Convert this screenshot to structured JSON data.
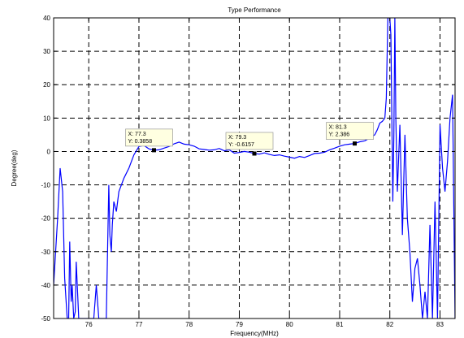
{
  "chart_data": {
    "type": "line",
    "title": "Type Performance",
    "xlabel": "Frequency(MHz)",
    "ylabel": "Degree(deg)",
    "xlim": [
      75.3,
      83.3
    ],
    "ylim": [
      -50,
      40
    ],
    "x_ticks": [
      "76",
      "77",
      "78",
      "79",
      "80",
      "81",
      "82",
      "83"
    ],
    "y_ticks": [
      "-50",
      "-40",
      "-30",
      "-20",
      "-10",
      "0",
      "10",
      "20",
      "30",
      "40"
    ],
    "grid": true,
    "series": [
      {
        "color": "#0000ff",
        "x": [
          75.3,
          75.38,
          75.43,
          75.48,
          75.52,
          75.57,
          75.6,
          75.62,
          75.65,
          75.67,
          75.7,
          75.73,
          75.75,
          75.8,
          75.85,
          75.9,
          75.95,
          76.0,
          76.05,
          76.1,
          76.15,
          76.2,
          76.25,
          76.3,
          76.35,
          76.4,
          76.42,
          76.45,
          76.47,
          76.5,
          76.55,
          76.6,
          76.7,
          76.8,
          76.9,
          77.0,
          77.1,
          77.2,
          77.3,
          77.4,
          77.5,
          77.6,
          77.7,
          77.8,
          77.9,
          78.0,
          78.1,
          78.2,
          78.3,
          78.4,
          78.5,
          78.6,
          78.7,
          78.8,
          78.9,
          79.0,
          79.1,
          79.2,
          79.3,
          79.4,
          79.5,
          79.6,
          79.7,
          79.8,
          79.9,
          80.0,
          80.1,
          80.2,
          80.3,
          80.4,
          80.5,
          80.6,
          80.7,
          80.8,
          80.9,
          81.0,
          81.1,
          81.2,
          81.3,
          81.4,
          81.5,
          81.6,
          81.7,
          81.75,
          81.8,
          81.85,
          81.9,
          81.93,
          81.96,
          82.0,
          82.02,
          82.04,
          82.06,
          82.08,
          82.1,
          82.12,
          82.15,
          82.2,
          82.25,
          82.3,
          82.35,
          82.4,
          82.45,
          82.5,
          82.55,
          82.6,
          82.65,
          82.7,
          82.75,
          82.8,
          82.85,
          82.9,
          82.95,
          83.0,
          83.05,
          83.1,
          83.15,
          83.2,
          83.25,
          83.3
        ],
        "y": [
          -40,
          -20,
          -5,
          -12,
          -38,
          -50,
          -50,
          -27,
          -45,
          -40,
          -50,
          -48,
          -33,
          -50,
          -50,
          -50,
          -50,
          -50,
          -50,
          -50,
          -40,
          -50,
          -50,
          -50,
          -50,
          -10,
          -25,
          -30,
          -22,
          -15,
          -18,
          -12,
          -8,
          -5,
          -1,
          1.5,
          1.8,
          0.8,
          0.3858,
          0.5,
          1.0,
          1.5,
          2.3,
          2.8,
          2.2,
          2.0,
          1.6,
          0.8,
          0.6,
          0.4,
          0.5,
          0.9,
          0.2,
          0.5,
          -0.5,
          -0.3,
          0.0,
          -0.2,
          -0.6157,
          -0.8,
          -0.4,
          -0.9,
          -1.2,
          -1.0,
          -1.4,
          -1.7,
          -2.0,
          -1.5,
          -1.8,
          -1.2,
          -0.6,
          -0.5,
          -0.2,
          0.5,
          1.0,
          1.6,
          2.0,
          2.2,
          2.386,
          2.9,
          3.2,
          4.0,
          5.0,
          6.5,
          8.5,
          9.0,
          10.0,
          16.0,
          40.0,
          40.0,
          35.0,
          10.0,
          -15.0,
          5.0,
          40.0,
          10.0,
          -12.0,
          8.0,
          -25.0,
          5.0,
          -20.0,
          -30.0,
          -45.0,
          -35.0,
          -32.0,
          -40.0,
          -50.0,
          -42.0,
          -50.0,
          -22.0,
          -50.0,
          -15.0,
          -50.0,
          8.0,
          -5.0,
          -12.0,
          -3.0,
          10.0,
          17.0,
          -50.0
        ]
      }
    ],
    "datatips": [
      {
        "x": 77.3,
        "y": 0.3858,
        "line1": "X: 77.3",
        "line2": "Y: 0.3858"
      },
      {
        "x": 79.3,
        "y": -0.6157,
        "line1": "X: 79.3",
        "line2": "Y: -0.6157"
      },
      {
        "x": 81.3,
        "y": 2.386,
        "line1": "X: 81.3",
        "line2": "Y: 2.386"
      }
    ]
  }
}
